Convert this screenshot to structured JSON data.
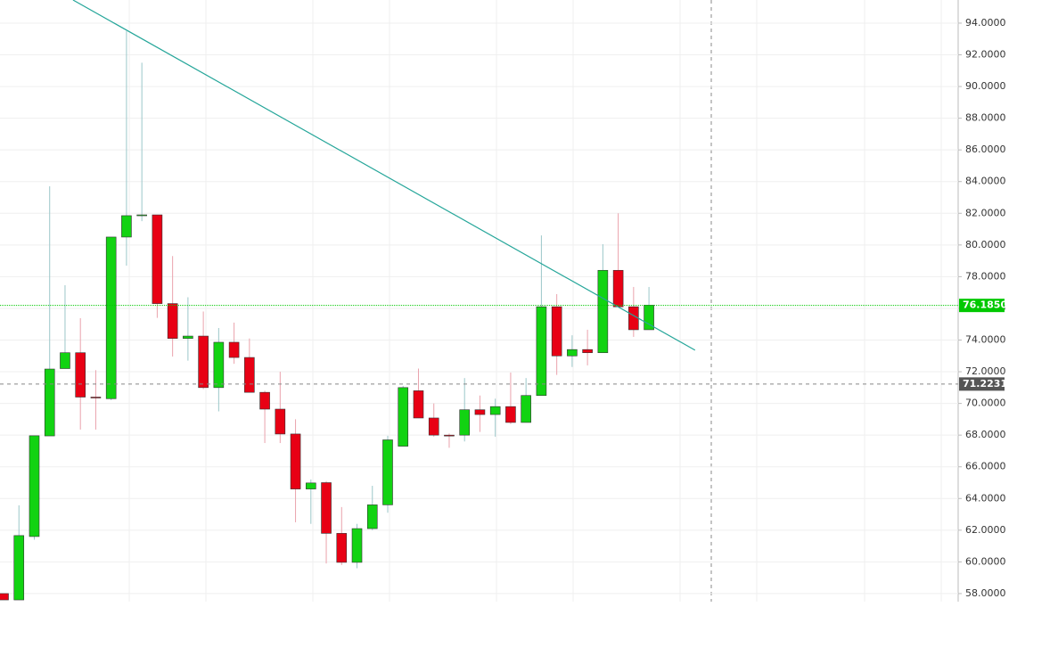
{
  "chart_data": {
    "type": "candlestick",
    "open": [
      58.0,
      57.6,
      61.6,
      67.95,
      72.2,
      73.2,
      70.4,
      70.3,
      80.5,
      81.85,
      81.9,
      76.3,
      74.1,
      74.25,
      71.0,
      73.86,
      72.9,
      70.7,
      69.64,
      68.07,
      64.6,
      65.0,
      61.8,
      59.97,
      62.1,
      63.6,
      67.3,
      70.8,
      69.08,
      68.0,
      68.0,
      69.6,
      69.3,
      69.8,
      68.8,
      70.5,
      76.1,
      73.0,
      73.4,
      73.2,
      78.4,
      76.1,
      74.65
    ],
    "high": [
      58.0,
      63.57,
      67.96,
      83.7,
      77.46,
      75.38,
      72.1,
      80.5,
      93.5,
      91.5,
      81.9,
      79.3,
      76.7,
      75.8,
      74.76,
      75.1,
      74.1,
      70.8,
      72.0,
      69.0,
      65.2,
      65.1,
      63.46,
      62.4,
      64.8,
      67.96,
      71.1,
      72.2,
      70.0,
      68.1,
      71.6,
      70.5,
      70.3,
      71.95,
      71.6,
      80.6,
      76.9,
      74.3,
      74.65,
      80.05,
      82.0,
      77.35,
      77.35
    ],
    "low": [
      57.6,
      57.6,
      61.4,
      67.95,
      72.2,
      68.35,
      68.35,
      70.2,
      78.7,
      81.5,
      75.4,
      72.96,
      72.7,
      70.9,
      69.5,
      72.5,
      70.7,
      67.5,
      67.5,
      62.5,
      62.4,
      59.9,
      59.8,
      59.6,
      62.0,
      63.1,
      67.3,
      69.08,
      67.9,
      67.2,
      67.6,
      68.2,
      67.9,
      68.7,
      68.8,
      70.5,
      71.8,
      72.3,
      72.4,
      73.2,
      76.1,
      74.2,
      74.65
    ],
    "close": [
      57.6,
      61.66,
      67.96,
      72.17,
      73.2,
      70.4,
      70.35,
      80.5,
      81.85,
      81.9,
      76.3,
      74.1,
      74.25,
      71.0,
      73.86,
      72.9,
      70.7,
      69.64,
      68.07,
      64.6,
      64.98,
      61.8,
      59.97,
      62.1,
      63.6,
      67.7,
      71.0,
      69.08,
      68.0,
      67.96,
      69.6,
      69.3,
      69.8,
      68.8,
      70.5,
      76.1,
      73.0,
      73.4,
      73.2,
      78.4,
      76.1,
      74.65,
      76.2
    ],
    "up_color": "#12d312",
    "down_color": "#e80014",
    "up_wick_color": "#9bc7c9",
    "down_wick_color": "#eaa2ac",
    "ylim": [
      57.49,
      95.46
    ],
    "yticks": [
      {
        "value": 58,
        "label": "58.0000"
      },
      {
        "value": 60,
        "label": "60.0000"
      },
      {
        "value": 62,
        "label": "62.0000"
      },
      {
        "value": 64,
        "label": "64.0000"
      },
      {
        "value": 66,
        "label": "66.0000"
      },
      {
        "value": 68,
        "label": "68.0000"
      },
      {
        "value": 70,
        "label": "70.0000"
      },
      {
        "value": 72,
        "label": "72.0000"
      },
      {
        "value": 74,
        "label": "74.0000"
      },
      {
        "value": 76,
        "label": "76.0000"
      },
      {
        "value": 78,
        "label": "78.0000"
      },
      {
        "value": 80,
        "label": "80.0000"
      },
      {
        "value": 82,
        "label": "82.0000"
      },
      {
        "value": 84,
        "label": "84.0000"
      },
      {
        "value": 86,
        "label": "86.0000"
      },
      {
        "value": 88,
        "label": "88.0000"
      },
      {
        "value": 90,
        "label": "90.0000"
      },
      {
        "value": 92,
        "label": "92.0000"
      },
      {
        "value": 94,
        "label": "94.0000"
      }
    ],
    "grid": true,
    "trendline": {
      "x": [
        4.52,
        45.0
      ],
      "y": [
        95.46,
        73.36
      ],
      "color": "#26a69a"
    },
    "price_line": {
      "value": 76.185,
      "label": "76.1850",
      "color": "#00c800"
    },
    "crosshair": {
      "value": 71.2231,
      "label": "71.2231",
      "color": "#555555"
    }
  }
}
